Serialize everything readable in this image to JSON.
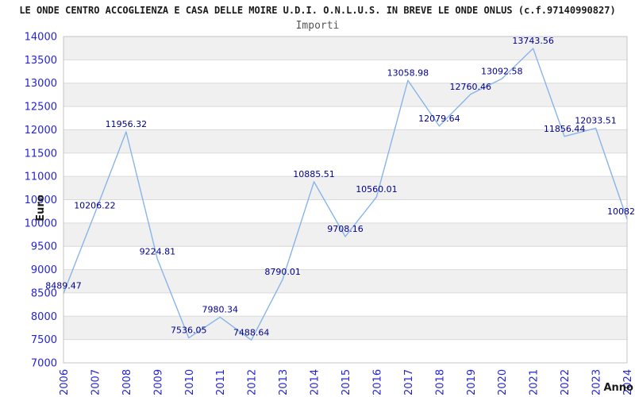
{
  "header": {
    "title": "LE ONDE CENTRO ACCOGLIENZA E CASA DELLE MOIRE U.D.I. O.N.L.U.S. IN BREVE LE ONDE ONLUS (c.f.97140990827)",
    "subtitle": "Importi"
  },
  "chart_data": {
    "type": "line",
    "title": "Importi",
    "xlabel": "Anno",
    "ylabel": "Euro",
    "x": [
      "2006",
      "2007",
      "2008",
      "2009",
      "2010",
      "2011",
      "2012",
      "2013",
      "2014",
      "2015",
      "2016",
      "2017",
      "2018",
      "2019",
      "2020",
      "2021",
      "2022",
      "2023",
      "2024"
    ],
    "values": [
      8489.47,
      10206.22,
      11956.32,
      9224.81,
      7536.05,
      7980.34,
      7488.64,
      8790.01,
      10885.51,
      9708.16,
      10560.01,
      13058.98,
      12079.64,
      12760.46,
      13092.58,
      13743.56,
      11856.44,
      12033.51,
      10082
    ],
    "point_labels": [
      "8489.47",
      "10206.22",
      "11956.32",
      "9224.81",
      "7536.05",
      "7980.34",
      "7488.64",
      "8790.01",
      "10885.51",
      "9708.16",
      "10560.01",
      "13058.98",
      "12079.64",
      "12760.46",
      "13092.58",
      "13743.56",
      "11856.44",
      "12033.51",
      "10082."
    ],
    "ylim": [
      7000,
      14000
    ],
    "ytick_step": 500,
    "yticks": [
      "7000",
      "7500",
      "8000",
      "8500",
      "9000",
      "9500",
      "10000",
      "10500",
      "11000",
      "11500",
      "12000",
      "12500",
      "13000",
      "13500",
      "14000"
    ],
    "grid": "horizontal-bands",
    "legend": "none",
    "colors": {
      "line": "#87b5e9",
      "point_label": "#00008c",
      "tick_label": "#2525d2",
      "band": "#f0f0f0",
      "gridline": "#dadada",
      "border": "#c5c5c5",
      "axis_title": "#1a1a1a"
    }
  }
}
